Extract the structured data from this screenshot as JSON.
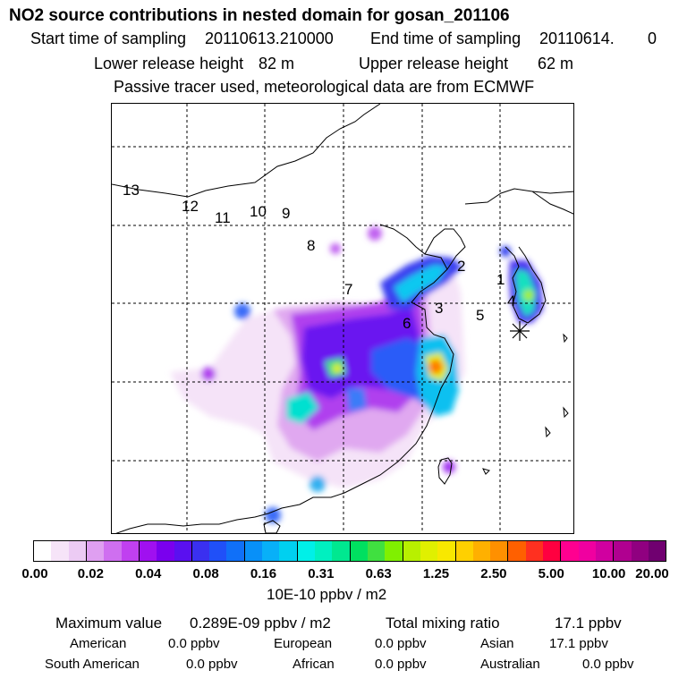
{
  "header": {
    "title": "NO2 source contributions in nested domain for gosan_201106",
    "start_label": "Start time of sampling",
    "start_value": "20110613.210000",
    "end_label": "End time of sampling",
    "end_value": "20110614.",
    "end_hour": "0",
    "lower_label": "Lower release height",
    "lower_value": "82 m",
    "upper_label": "Upper release height",
    "upper_value": "62 m",
    "note": "Passive tracer used, meteorological data are from ECMWF"
  },
  "map": {
    "region_labels": [
      "13",
      "12",
      "11",
      "10",
      "9",
      "8",
      "7",
      "6",
      "3",
      "2",
      "1",
      "4",
      "5"
    ]
  },
  "colorbar": {
    "colors": [
      "#ffffff",
      "#f6e4f8",
      "#eccbf4",
      "#df9ff1",
      "#cf6ff0",
      "#c040f0",
      "#a010f0",
      "#7a00ee",
      "#5a10f0",
      "#3a30f0",
      "#2050f8",
      "#1070f8",
      "#0890f8",
      "#08b0f8",
      "#00d0f0",
      "#00f0e8",
      "#00f0c0",
      "#00e890",
      "#00e060",
      "#40e040",
      "#80f000",
      "#b8f000",
      "#e0f000",
      "#f8e800",
      "#ffd000",
      "#ffb000",
      "#ff9000",
      "#ff6000",
      "#ff3020",
      "#ff0040",
      "#ff0090",
      "#f000a0",
      "#d000a0",
      "#b00090",
      "#900080",
      "#700070"
    ],
    "tick_labels": [
      "0.00",
      "0.02",
      "0.04",
      "0.08",
      "0.16",
      "0.31",
      "0.63",
      "1.25",
      "2.50",
      "5.00",
      "10.00",
      "20.00"
    ],
    "units": "10E-10 ppbv / m2"
  },
  "stats": {
    "max_label": "Maximum value",
    "max_value": "0.289E-09 ppbv / m2",
    "total_label": "Total mixing ratio",
    "total_value": "17.1 ppbv",
    "regions": [
      {
        "name": "American",
        "value": "0.0 ppbv"
      },
      {
        "name": "European",
        "value": "0.0 ppbv"
      },
      {
        "name": "Asian",
        "value": "17.1 ppbv"
      },
      {
        "name": "South American",
        "value": "0.0 ppbv"
      },
      {
        "name": "African",
        "value": "0.0 ppbv"
      },
      {
        "name": "Australian",
        "value": "0.0 ppbv"
      }
    ]
  }
}
